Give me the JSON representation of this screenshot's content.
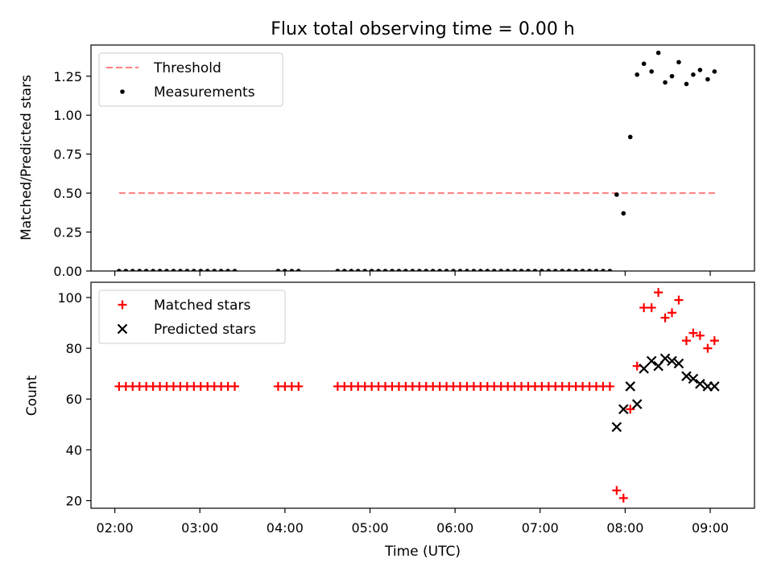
{
  "chart_data": [
    {
      "type": "scatter",
      "title": "Flux total observing time = 0.00 h",
      "ylabel": "Matched/Predicted stars",
      "xlabel": "",
      "xlim_hours": [
        1.72,
        9.52
      ],
      "ylim": [
        0.0,
        1.45
      ],
      "x_ticks": [
        {
          "value": 2,
          "label": "02:00"
        },
        {
          "value": 3,
          "label": "03:00"
        },
        {
          "value": 4,
          "label": "04:00"
        },
        {
          "value": 5,
          "label": "05:00"
        },
        {
          "value": 6,
          "label": "06:00"
        },
        {
          "value": 7,
          "label": "07:00"
        },
        {
          "value": 8,
          "label": "08:00"
        },
        {
          "value": 9,
          "label": "09:00"
        }
      ],
      "y_ticks": [
        {
          "value": 0.0,
          "label": "0.00"
        },
        {
          "value": 0.25,
          "label": "0.25"
        },
        {
          "value": 0.5,
          "label": "0.50"
        },
        {
          "value": 0.75,
          "label": "0.75"
        },
        {
          "value": 1.0,
          "label": "1.00"
        },
        {
          "value": 1.25,
          "label": "1.25"
        }
      ],
      "legend": {
        "placement": "top-left",
        "entries": [
          "Threshold",
          "Measurements"
        ]
      },
      "threshold": {
        "name": "Threshold",
        "y": 0.5,
        "x_range": [
          2.05,
          9.07
        ],
        "color": "#ff7f7f",
        "style": "dashed"
      },
      "series": [
        {
          "name": "Measurements",
          "marker": "dot",
          "color": "#000000",
          "points": [
            [
              2.05,
              0
            ],
            [
              2.13,
              0
            ],
            [
              2.21,
              0
            ],
            [
              2.29,
              0
            ],
            [
              2.37,
              0
            ],
            [
              2.45,
              0
            ],
            [
              2.53,
              0
            ],
            [
              2.61,
              0
            ],
            [
              2.69,
              0
            ],
            [
              2.77,
              0
            ],
            [
              2.85,
              0
            ],
            [
              2.93,
              0
            ],
            [
              3.01,
              0
            ],
            [
              3.09,
              0
            ],
            [
              3.17,
              0
            ],
            [
              3.25,
              0
            ],
            [
              3.33,
              0
            ],
            [
              3.41,
              0
            ],
            [
              3.92,
              0
            ],
            [
              4.0,
              0
            ],
            [
              4.08,
              0
            ],
            [
              4.16,
              0
            ],
            [
              4.62,
              0
            ],
            [
              4.7,
              0
            ],
            [
              4.78,
              0
            ],
            [
              4.86,
              0
            ],
            [
              4.94,
              0
            ],
            [
              5.02,
              0
            ],
            [
              5.1,
              0
            ],
            [
              5.18,
              0
            ],
            [
              5.26,
              0
            ],
            [
              5.34,
              0
            ],
            [
              5.42,
              0
            ],
            [
              5.5,
              0
            ],
            [
              5.58,
              0
            ],
            [
              5.66,
              0
            ],
            [
              5.74,
              0
            ],
            [
              5.82,
              0
            ],
            [
              5.9,
              0
            ],
            [
              5.98,
              0
            ],
            [
              6.06,
              0
            ],
            [
              6.14,
              0
            ],
            [
              6.22,
              0
            ],
            [
              6.3,
              0
            ],
            [
              6.38,
              0
            ],
            [
              6.46,
              0
            ],
            [
              6.54,
              0
            ],
            [
              6.62,
              0
            ],
            [
              6.7,
              0
            ],
            [
              6.78,
              0
            ],
            [
              6.86,
              0
            ],
            [
              6.94,
              0
            ],
            [
              7.02,
              0
            ],
            [
              7.1,
              0
            ],
            [
              7.18,
              0
            ],
            [
              7.26,
              0
            ],
            [
              7.34,
              0
            ],
            [
              7.42,
              0
            ],
            [
              7.5,
              0
            ],
            [
              7.58,
              0
            ],
            [
              7.66,
              0
            ],
            [
              7.74,
              0
            ],
            [
              7.82,
              0
            ],
            [
              7.9,
              0.49
            ],
            [
              7.98,
              0.37
            ],
            [
              8.06,
              0.86
            ],
            [
              8.14,
              1.26
            ],
            [
              8.22,
              1.33
            ],
            [
              8.31,
              1.28
            ],
            [
              8.39,
              1.4
            ],
            [
              8.47,
              1.21
            ],
            [
              8.55,
              1.25
            ],
            [
              8.63,
              1.34
            ],
            [
              8.72,
              1.2
            ],
            [
              8.8,
              1.26
            ],
            [
              8.88,
              1.29
            ],
            [
              8.97,
              1.23
            ],
            [
              9.05,
              1.28
            ]
          ]
        }
      ]
    },
    {
      "type": "scatter",
      "title": "",
      "ylabel": "Count",
      "xlabel": "Time (UTC)",
      "xlim_hours": [
        1.72,
        9.52
      ],
      "ylim": [
        17,
        106
      ],
      "x_ticks": [
        {
          "value": 2,
          "label": "02:00"
        },
        {
          "value": 3,
          "label": "03:00"
        },
        {
          "value": 4,
          "label": "04:00"
        },
        {
          "value": 5,
          "label": "05:00"
        },
        {
          "value": 6,
          "label": "06:00"
        },
        {
          "value": 7,
          "label": "07:00"
        },
        {
          "value": 8,
          "label": "08:00"
        },
        {
          "value": 9,
          "label": "09:00"
        }
      ],
      "y_ticks": [
        {
          "value": 20,
          "label": "20"
        },
        {
          "value": 40,
          "label": "40"
        },
        {
          "value": 60,
          "label": "60"
        },
        {
          "value": 80,
          "label": "80"
        },
        {
          "value": 100,
          "label": "100"
        }
      ],
      "legend": {
        "placement": "top-left",
        "entries": [
          "Matched stars",
          "Predicted stars"
        ]
      },
      "series": [
        {
          "name": "Matched stars",
          "marker": "plus",
          "color": "#ff0000",
          "points": [
            [
              2.05,
              65
            ],
            [
              2.13,
              65
            ],
            [
              2.21,
              65
            ],
            [
              2.29,
              65
            ],
            [
              2.37,
              65
            ],
            [
              2.45,
              65
            ],
            [
              2.53,
              65
            ],
            [
              2.61,
              65
            ],
            [
              2.69,
              65
            ],
            [
              2.77,
              65
            ],
            [
              2.85,
              65
            ],
            [
              2.93,
              65
            ],
            [
              3.01,
              65
            ],
            [
              3.09,
              65
            ],
            [
              3.17,
              65
            ],
            [
              3.25,
              65
            ],
            [
              3.33,
              65
            ],
            [
              3.41,
              65
            ],
            [
              3.92,
              65
            ],
            [
              4.0,
              65
            ],
            [
              4.08,
              65
            ],
            [
              4.16,
              65
            ],
            [
              4.62,
              65
            ],
            [
              4.7,
              65
            ],
            [
              4.78,
              65
            ],
            [
              4.86,
              65
            ],
            [
              4.94,
              65
            ],
            [
              5.02,
              65
            ],
            [
              5.1,
              65
            ],
            [
              5.18,
              65
            ],
            [
              5.26,
              65
            ],
            [
              5.34,
              65
            ],
            [
              5.42,
              65
            ],
            [
              5.5,
              65
            ],
            [
              5.58,
              65
            ],
            [
              5.66,
              65
            ],
            [
              5.74,
              65
            ],
            [
              5.82,
              65
            ],
            [
              5.9,
              65
            ],
            [
              5.98,
              65
            ],
            [
              6.06,
              65
            ],
            [
              6.14,
              65
            ],
            [
              6.22,
              65
            ],
            [
              6.3,
              65
            ],
            [
              6.38,
              65
            ],
            [
              6.46,
              65
            ],
            [
              6.54,
              65
            ],
            [
              6.62,
              65
            ],
            [
              6.7,
              65
            ],
            [
              6.78,
              65
            ],
            [
              6.86,
              65
            ],
            [
              6.94,
              65
            ],
            [
              7.02,
              65
            ],
            [
              7.1,
              65
            ],
            [
              7.18,
              65
            ],
            [
              7.26,
              65
            ],
            [
              7.34,
              65
            ],
            [
              7.42,
              65
            ],
            [
              7.5,
              65
            ],
            [
              7.58,
              65
            ],
            [
              7.66,
              65
            ],
            [
              7.74,
              65
            ],
            [
              7.82,
              65
            ],
            [
              7.9,
              24
            ],
            [
              7.98,
              21
            ],
            [
              8.06,
              56
            ],
            [
              8.14,
              73
            ],
            [
              8.22,
              96
            ],
            [
              8.31,
              96
            ],
            [
              8.39,
              102
            ],
            [
              8.47,
              92
            ],
            [
              8.55,
              94
            ],
            [
              8.63,
              99
            ],
            [
              8.72,
              83
            ],
            [
              8.8,
              86
            ],
            [
              8.88,
              85
            ],
            [
              8.97,
              80
            ],
            [
              9.05,
              83
            ]
          ]
        },
        {
          "name": "Predicted stars",
          "marker": "x",
          "color": "#000000",
          "points": [
            [
              7.9,
              49
            ],
            [
              7.98,
              56
            ],
            [
              8.06,
              65
            ],
            [
              8.14,
              58
            ],
            [
              8.22,
              72
            ],
            [
              8.31,
              75
            ],
            [
              8.39,
              73
            ],
            [
              8.47,
              76
            ],
            [
              8.55,
              75
            ],
            [
              8.63,
              74
            ],
            [
              8.72,
              69
            ],
            [
              8.8,
              68
            ],
            [
              8.88,
              66
            ],
            [
              8.97,
              65
            ],
            [
              9.05,
              65
            ]
          ]
        }
      ]
    }
  ]
}
